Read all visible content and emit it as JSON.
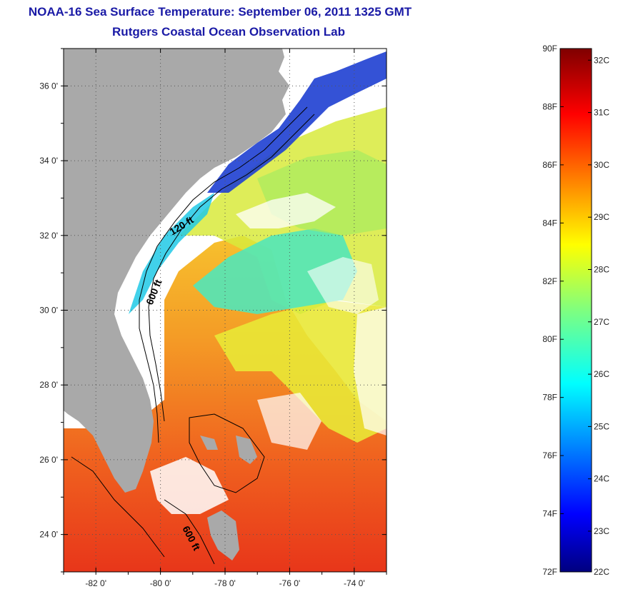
{
  "title": "NOAA-16 Sea Surface Temperature:  September 06, 2011 1325 GMT",
  "subtitle": "Rutgers Coastal Ocean Observation Lab",
  "map": {
    "lon_range": [
      -83.0,
      -73.0
    ],
    "lat_range": [
      23.0,
      37.0
    ],
    "lon_ticks": [
      "-82 0'",
      "-80 0'",
      "-78 0'",
      "-76 0'",
      "-74 0'"
    ],
    "lat_ticks": [
      "24 0'",
      "26 0'",
      "28 0'",
      "30 0'",
      "32 0'",
      "34 0'",
      "36 0'"
    ],
    "grid": "dotted",
    "land_color": "#a9a9a9",
    "isobath_labels": [
      "120 ft",
      "600 ft",
      "600 ft"
    ]
  },
  "colorbar": {
    "fahrenheit_labels": [
      "90F",
      "88F",
      "86F",
      "84F",
      "82F",
      "80F",
      "78F",
      "76F",
      "74F",
      "72F"
    ],
    "celsius_labels": [
      "32C",
      "31C",
      "30C",
      "29C",
      "28C",
      "27C",
      "26C",
      "25C",
      "24C",
      "23C",
      "22C"
    ],
    "colormap": "jet"
  }
}
